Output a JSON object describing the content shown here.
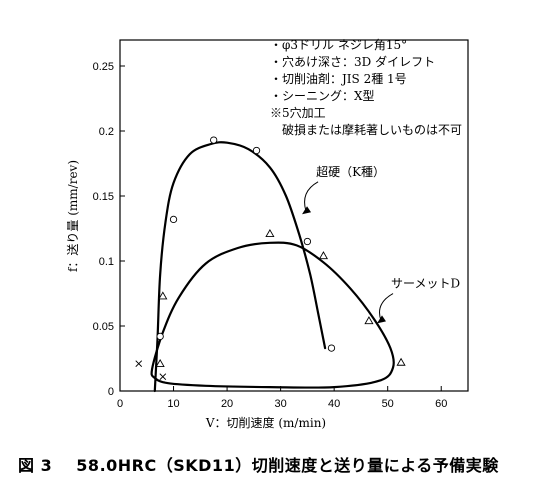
{
  "chart_data": {
    "type": "scatter",
    "title": "",
    "xlabel": "V：切削速度 (m/min)",
    "ylabel": "f：送り量 (mm/rev)",
    "xlim": [
      0,
      65
    ],
    "ylim": [
      0,
      0.27
    ],
    "x_ticks": [
      0,
      10,
      20,
      30,
      40,
      50,
      60
    ],
    "y_ticks": [
      0,
      0.05,
      0.1,
      0.15,
      0.2,
      0.25
    ],
    "x_tick_labels": [
      "0",
      "10",
      "20",
      "30",
      "40",
      "50",
      "60"
    ],
    "y_tick_labels": [
      "0",
      "0.05",
      "0.1",
      "0.15",
      "0.2",
      "0.25"
    ],
    "grid": false,
    "notes": [
      "・φ3ドリル ネジレ角15°",
      "・穴あけ深さ：3D ダイレフト",
      "・切削油剤：JIS 2種 1号",
      "・シーニング：X型",
      "※5穴加工",
      "破損または摩耗著しいものは不可"
    ],
    "series": [
      {
        "name": "超硬（K種）",
        "marker": "circle",
        "points": [
          [
            17.5,
            0.193
          ],
          [
            25.5,
            0.185
          ],
          [
            10.0,
            0.132
          ],
          [
            35.0,
            0.115
          ],
          [
            7.5,
            0.042
          ],
          [
            39.5,
            0.033
          ]
        ],
        "boundary": [
          [
            6.5,
            0.0
          ],
          [
            7.0,
            0.04
          ],
          [
            7.5,
            0.09
          ],
          [
            8.5,
            0.13
          ],
          [
            10.0,
            0.16
          ],
          [
            13.0,
            0.182
          ],
          [
            17.0,
            0.19
          ],
          [
            20.0,
            0.191
          ],
          [
            24.0,
            0.186
          ],
          [
            28.0,
            0.172
          ],
          [
            31.0,
            0.15
          ],
          [
            33.5,
            0.12
          ],
          [
            35.5,
            0.09
          ],
          [
            37.0,
            0.06
          ],
          [
            38.3,
            0.033
          ]
        ]
      },
      {
        "name": "サーメットD",
        "marker": "triangle",
        "points": [
          [
            8.0,
            0.073
          ],
          [
            28.0,
            0.121
          ],
          [
            38.0,
            0.104
          ],
          [
            46.5,
            0.054
          ],
          [
            7.5,
            0.021
          ],
          [
            52.5,
            0.022
          ]
        ],
        "boundary": [
          [
            6.0,
            0.017
          ],
          [
            8.0,
            0.045
          ],
          [
            11.0,
            0.072
          ],
          [
            16.0,
            0.098
          ],
          [
            22.0,
            0.11
          ],
          [
            28.0,
            0.114
          ],
          [
            33.0,
            0.112
          ],
          [
            38.0,
            0.099
          ],
          [
            43.0,
            0.079
          ],
          [
            47.5,
            0.055
          ],
          [
            50.5,
            0.033
          ],
          [
            51.0,
            0.018
          ],
          [
            48.5,
            0.008
          ],
          [
            40.0,
            0.003
          ],
          [
            28.0,
            0.003
          ],
          [
            16.0,
            0.004
          ],
          [
            9.0,
            0.006
          ],
          [
            6.5,
            0.01
          ]
        ]
      },
      {
        "name": "不可",
        "marker": "cross",
        "points": [
          [
            3.5,
            0.021
          ],
          [
            8.0,
            0.011
          ]
        ]
      }
    ],
    "series_labels": [
      {
        "text": "超硬（K種）",
        "anchor": [
          34.0,
          0.136
        ],
        "at": [
          37.0,
          0.164
        ]
      },
      {
        "text": "サーメットD",
        "anchor": [
          48.0,
          0.052
        ],
        "at": [
          51.0,
          0.078
        ]
      }
    ]
  },
  "caption": {
    "figure_number": "図 3",
    "text": "58.0HRC（SKD11）切削速度と送り量による予備実験"
  }
}
